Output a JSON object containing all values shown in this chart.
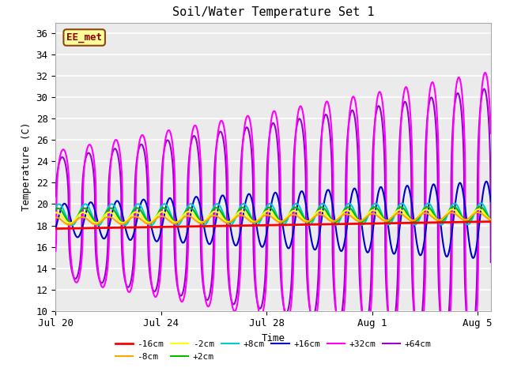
{
  "title": "Soil/Water Temperature Set 1",
  "xlabel": "Time",
  "ylabel": "Temperature (C)",
  "ylim": [
    10,
    37
  ],
  "yticks": [
    10,
    12,
    14,
    16,
    18,
    20,
    22,
    24,
    26,
    28,
    30,
    32,
    34,
    36
  ],
  "xlim_start": 0,
  "xlim_end": 16.5,
  "xtick_positions": [
    0,
    4,
    8,
    12,
    16
  ],
  "xtick_labels": [
    "Jul 20",
    "Jul 24",
    "Jul 28",
    "Aug 1",
    "Aug 5"
  ],
  "annotation_text": "EE_met",
  "annotation_box_color": "#FFFF99",
  "annotation_border_color": "#8B4513",
  "series": {
    "-16cm": {
      "color": "#FF0000",
      "lw": 2.0
    },
    "-8cm": {
      "color": "#FFA500",
      "lw": 1.5
    },
    "-2cm": {
      "color": "#FFFF00",
      "lw": 1.5
    },
    "+2cm": {
      "color": "#00BB00",
      "lw": 1.5
    },
    "+8cm": {
      "color": "#00CCCC",
      "lw": 1.5
    },
    "+16cm": {
      "color": "#0000CC",
      "lw": 1.5
    },
    "+32cm": {
      "color": "#FF00FF",
      "lw": 1.5
    },
    "+64cm": {
      "color": "#9900CC",
      "lw": 1.5
    }
  },
  "plot_bg_color": "#EBEBEB",
  "grid_color": "#FFFFFF",
  "font_family": "monospace"
}
